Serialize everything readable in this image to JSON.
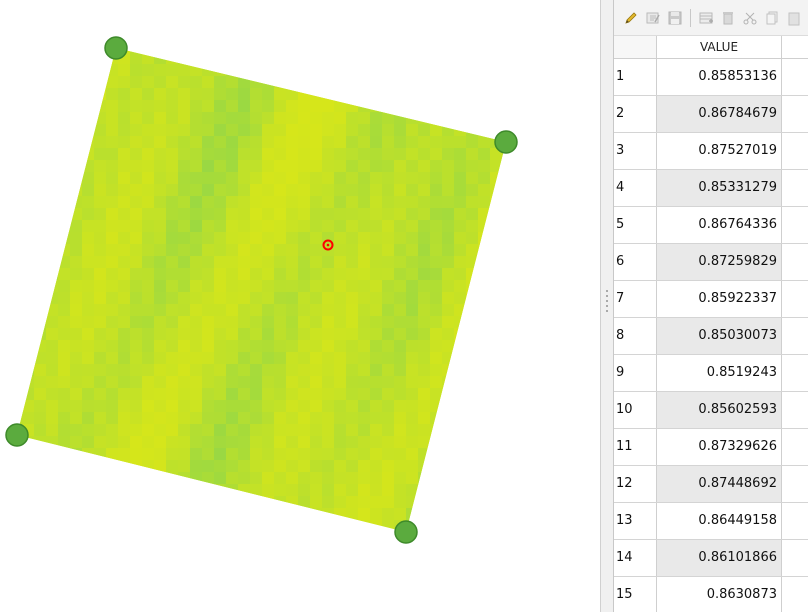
{
  "colors": {
    "raster_base": "#cde21c",
    "raster_light": "#d6e61a",
    "raster_green": "#8fd64a",
    "vertex_fill": "#5bab3e",
    "vertex_stroke": "#3e8a2a",
    "center_marker": "#ff0000"
  },
  "map": {
    "layer_icon": "raster-layer",
    "vertices": [
      "vertex-top-left",
      "vertex-top-right",
      "vertex-bottom-left",
      "vertex-bottom-right"
    ],
    "center_marker_icon": "center-point-icon"
  },
  "toolbar": {
    "buttons": [
      "pencil-icon",
      "edit-table-icon",
      "save-icon",
      "add-row-icon",
      "delete-row-icon",
      "cut-icon",
      "copy-icon",
      "paste-icon"
    ]
  },
  "table": {
    "column_header": "VALUE",
    "rows": [
      {
        "id": "1",
        "value": "0.85853136"
      },
      {
        "id": "2",
        "value": "0.86784679"
      },
      {
        "id": "3",
        "value": "0.87527019"
      },
      {
        "id": "4",
        "value": "0.85331279"
      },
      {
        "id": "5",
        "value": "0.86764336"
      },
      {
        "id": "6",
        "value": "0.87259829"
      },
      {
        "id": "7",
        "value": "0.85922337"
      },
      {
        "id": "8",
        "value": "0.85030073"
      },
      {
        "id": "9",
        "value": "0.8519243"
      },
      {
        "id": "10",
        "value": "0.85602593"
      },
      {
        "id": "11",
        "value": "0.87329626"
      },
      {
        "id": "12",
        "value": "0.87448692"
      },
      {
        "id": "13",
        "value": "0.86449158"
      },
      {
        "id": "14",
        "value": "0.86101866"
      },
      {
        "id": "15",
        "value": "0.8630873"
      }
    ]
  }
}
